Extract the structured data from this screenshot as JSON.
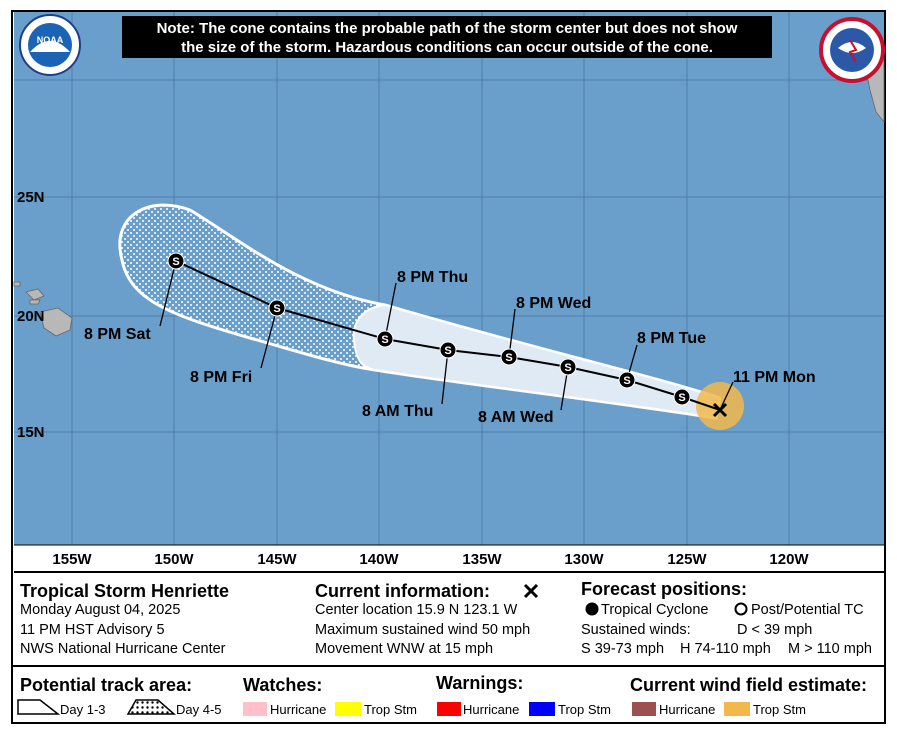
{
  "logo_text": "NOAA",
  "note": [
    "Note: The cone contains the probable path of the storm center but does not show",
    "the size of the storm. Hazardous conditions can occur outside of the cone."
  ],
  "longitudes": [
    "155W",
    "150W",
    "145W",
    "140W",
    "135W",
    "130W",
    "125W",
    "120W"
  ],
  "latitudes": [
    "25N",
    "20N",
    "15N"
  ],
  "point_symbol": "S",
  "track_labels": [
    "11 PM Mon",
    "8 PM Tue",
    "8 AM Wed",
    "8 PM Wed",
    "8 AM Thu",
    "8 PM Thu",
    "8 PM Fri",
    "8 PM Sat"
  ],
  "storm": {
    "name": "Tropical Storm Henriette",
    "date": "Monday August 04, 2025",
    "advisory": "11 PM HST Advisory 5",
    "center": "NWS National Hurricane Center"
  },
  "current": {
    "heading": "Current information:",
    "location": "Center location 15.9 N 123.1 W",
    "wind": "Maximum sustained wind 50 mph",
    "movement": "Movement WNW at 15 mph"
  },
  "forecast": {
    "heading": "Forecast positions:",
    "tropical": "Tropical Cyclone",
    "post": "Post/Potential TC",
    "sustained": "Sustained winds:",
    "d": "D < 39 mph",
    "s": "S 39-73 mph",
    "h": "H 74-110 mph",
    "m": "M > 110 mph"
  },
  "legend": {
    "track_heading": "Potential track area:",
    "day13": "Day 1-3",
    "day45": "Day 4-5",
    "watches": "Watches:",
    "warnings": "Warnings:",
    "wind_heading": "Current wind field estimate:",
    "hurricane": "Hurricane",
    "trop_stm": "Trop Stm"
  }
}
